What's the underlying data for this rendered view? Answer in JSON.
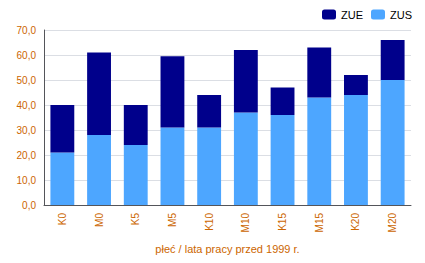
{
  "chart_data": {
    "type": "bar",
    "categories": [
      "K0",
      "M0",
      "K5",
      "M5",
      "K10",
      "M10",
      "K15",
      "M15",
      "K20",
      "M20"
    ],
    "series": [
      {
        "name": "ZUS",
        "color": "#4da6ff",
        "values": [
          21.0,
          28.0,
          24.0,
          31.0,
          31.0,
          37.0,
          36.0,
          43.0,
          44.0,
          50.0
        ]
      },
      {
        "name": "ZUE",
        "color": "#00008b",
        "values": [
          19.0,
          33.0,
          16.0,
          28.5,
          13.0,
          25.0,
          11.0,
          20.0,
          8.0,
          16.0
        ]
      }
    ],
    "stacked": true,
    "xlabel": "płeć / lata pracy przed 1999 r.",
    "ylim": [
      0,
      70
    ],
    "yticks": [
      {
        "value": 0,
        "label": "0,0"
      },
      {
        "value": 10,
        "label": "10,0"
      },
      {
        "value": 20,
        "label": "20,0"
      },
      {
        "value": 30,
        "label": "30,0"
      },
      {
        "value": 40,
        "label": "40,0"
      },
      {
        "value": 50,
        "label": "50,0"
      },
      {
        "value": 60,
        "label": "60,0"
      },
      {
        "value": 70,
        "label": "70,0"
      }
    ],
    "grid": true,
    "legend": "upper right"
  }
}
